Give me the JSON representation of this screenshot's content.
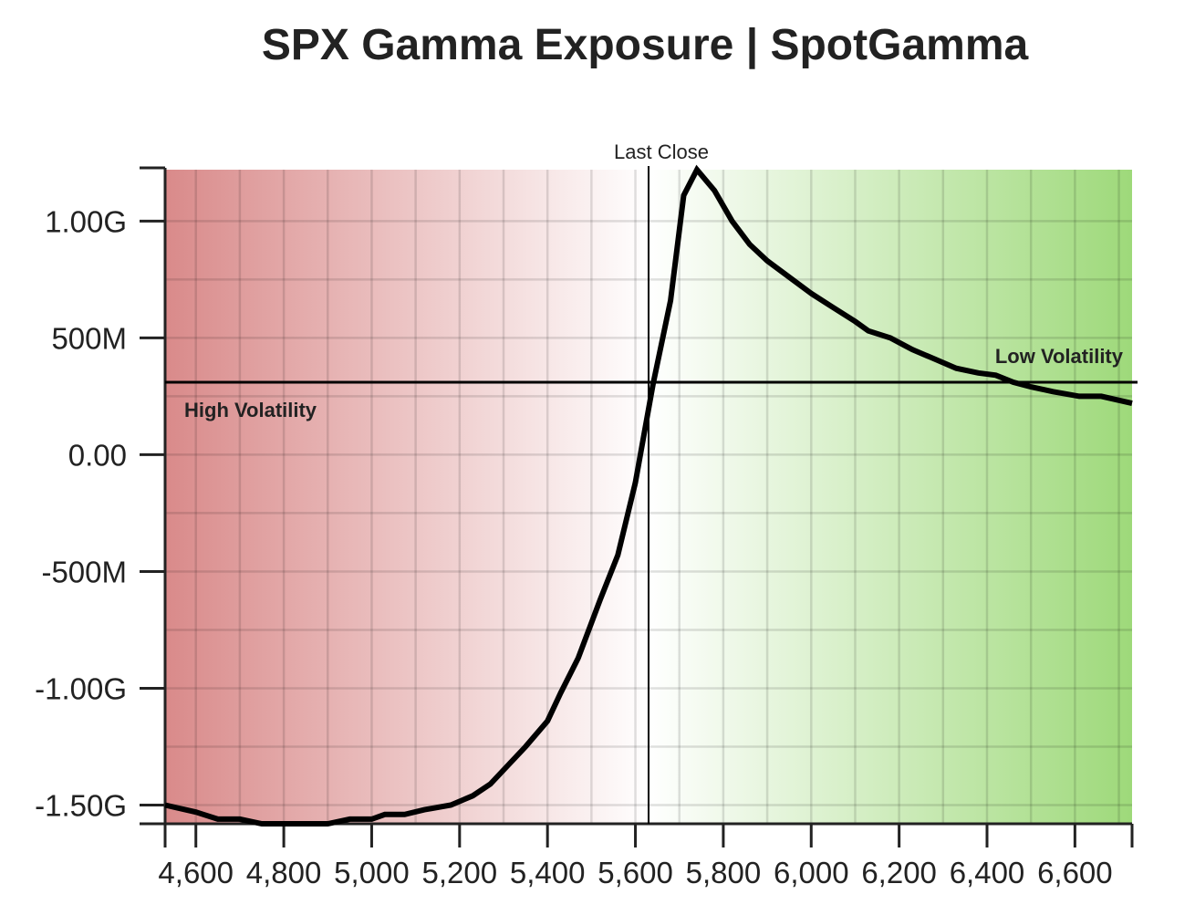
{
  "chart_data": {
    "type": "line",
    "title": "SPX Gamma Exposure | SpotGamma",
    "xlabel": "",
    "ylabel": "",
    "xlim": [
      4530,
      6730
    ],
    "ylim": [
      -1.58,
      1.22
    ],
    "x_ticks": [
      4600,
      4800,
      5000,
      5200,
      5400,
      5600,
      5800,
      6000,
      6200,
      6400,
      6600
    ],
    "x_tick_labels": [
      "4,600",
      "4,800",
      "5,000",
      "5,200",
      "5,400",
      "5,600",
      "5,800",
      "6,000",
      "6,200",
      "6,400",
      "6,600"
    ],
    "y_ticks": [
      -1.5,
      -1.0,
      -0.5,
      0.0,
      0.5,
      1.0
    ],
    "y_tick_labels": [
      "-1.50G",
      "-1.00G",
      "-500M",
      "0.00",
      "500M",
      "1.00G"
    ],
    "grid": true,
    "background": {
      "low_color": "#d98a8a",
      "mid_color": "#ffffff",
      "high_color": "#9ed97a",
      "neutral_x": 5630
    },
    "annotations": {
      "last_close": {
        "label": "Last Close",
        "x": 5630
      },
      "flip_level": {
        "y": 0.31
      },
      "high_volatility_label": "High Volatility",
      "low_volatility_label": "Low Volatility"
    },
    "line_color": "#000000",
    "series": [
      {
        "x": [
          4530,
          4600,
          4650,
          4700,
          4750,
          4800,
          4850,
          4900,
          4950,
          5000,
          5030,
          5075,
          5120,
          5180,
          5230,
          5270,
          5310,
          5350,
          5400,
          5430,
          5470,
          5520,
          5560,
          5600,
          5640,
          5680,
          5710,
          5740,
          5780,
          5820,
          5860,
          5900,
          5950,
          6000,
          6050,
          6100,
          6130,
          6180,
          6230,
          6280,
          6330,
          6380,
          6420,
          6460,
          6500,
          6550,
          6610,
          6660,
          6730
        ],
        "y": [
          -1.5,
          -1.53,
          -1.56,
          -1.56,
          -1.58,
          -1.58,
          -1.58,
          -1.58,
          -1.56,
          -1.56,
          -1.54,
          -1.54,
          -1.52,
          -1.5,
          -1.46,
          -1.41,
          -1.33,
          -1.25,
          -1.14,
          -1.02,
          -0.87,
          -0.62,
          -0.43,
          -0.12,
          0.3,
          0.66,
          1.11,
          1.22,
          1.13,
          1.0,
          0.9,
          0.83,
          0.76,
          0.69,
          0.63,
          0.57,
          0.53,
          0.5,
          0.45,
          0.41,
          0.37,
          0.35,
          0.34,
          0.31,
          0.29,
          0.27,
          0.25,
          0.25,
          0.22
        ]
      }
    ]
  }
}
